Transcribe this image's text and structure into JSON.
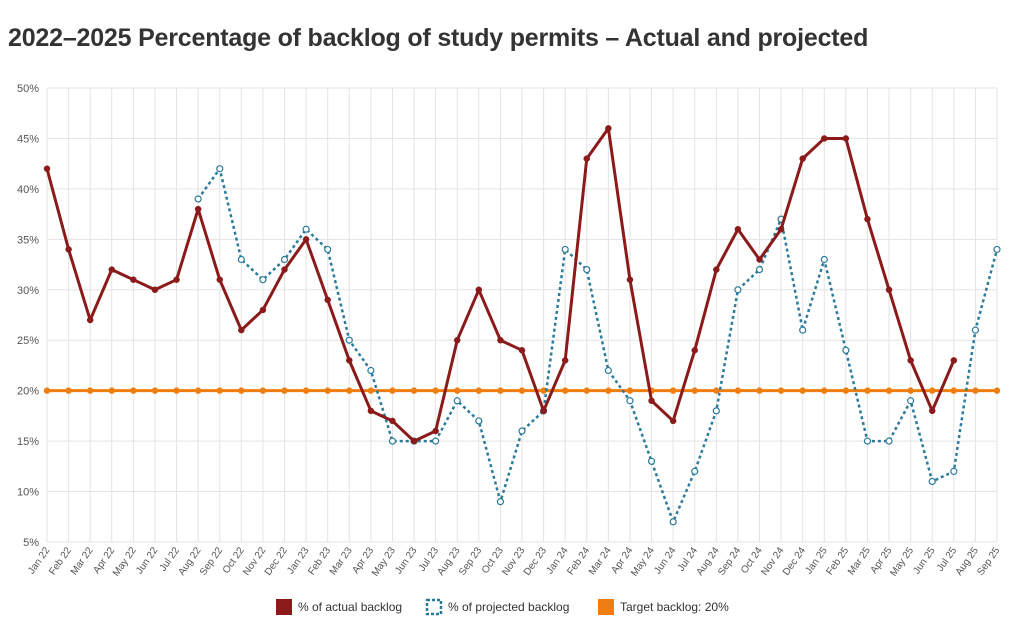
{
  "title": "2022–2025 Percentage of backlog of study permits – Actual and projected",
  "chart_data": {
    "type": "line",
    "title": "2022–2025 Percentage of backlog of study permits – Actual and projected",
    "xlabel": "",
    "ylabel": "",
    "ylim": [
      5,
      50
    ],
    "yticks": [
      5,
      10,
      15,
      20,
      25,
      30,
      35,
      40,
      45,
      50
    ],
    "ytick_labels": [
      "5%",
      "10%",
      "15%",
      "20%",
      "25%",
      "30%",
      "35%",
      "40%",
      "45%",
      "50%"
    ],
    "categories": [
      "Jan 22",
      "Feb 22",
      "Mar 22",
      "Apr 22",
      "May 22",
      "Jun 22",
      "Jul 22",
      "Aug 22",
      "Sep 22",
      "Oct 22",
      "Nov 22",
      "Dec 22",
      "Jan 23",
      "Feb 23",
      "Mar 23",
      "Apr 23",
      "May 23",
      "Jun 23",
      "Jul 23",
      "Aug 23",
      "Sep 23",
      "Oct 23",
      "Nov 23",
      "Dec 23",
      "Jan 24",
      "Feb 24",
      "Mar 24",
      "Apr 24",
      "May 24",
      "Jun 24",
      "Jul 24",
      "Aug 24",
      "Sep 24",
      "Oct 24",
      "Nov 24",
      "Dec 24",
      "Jan 25",
      "Feb 25",
      "Mar 25",
      "Apr 25",
      "May 25",
      "Jun 25",
      "Jul 25",
      "Aug 25",
      "Sep 25"
    ],
    "grid": true,
    "legend_position": "bottom",
    "series": [
      {
        "name": "% of actual backlog",
        "style": "solid",
        "color": "#8b1a1a",
        "values": [
          42,
          34,
          27,
          32,
          31,
          30,
          31,
          38,
          31,
          26,
          28,
          32,
          35,
          29,
          23,
          18,
          17,
          15,
          16,
          25,
          30,
          25,
          24,
          18,
          23,
          43,
          46,
          31,
          19,
          17,
          24,
          32,
          36,
          33,
          36,
          43,
          45,
          45,
          37,
          30,
          23,
          18,
          23,
          null,
          null
        ]
      },
      {
        "name": "% of projected backlog",
        "style": "dotted",
        "color": "#2a7a9a",
        "values": [
          null,
          null,
          null,
          null,
          null,
          null,
          null,
          39,
          42,
          33,
          31,
          33,
          36,
          34,
          25,
          22,
          15,
          15,
          15,
          19,
          17,
          9,
          16,
          18,
          34,
          32,
          22,
          19,
          13,
          7,
          12,
          18,
          30,
          32,
          37,
          26,
          33,
          24,
          15,
          15,
          19,
          11,
          12,
          26,
          34
        ]
      },
      {
        "name": "Target backlog: 20%",
        "style": "solid",
        "color": "#f07d10",
        "values": [
          20,
          20,
          20,
          20,
          20,
          20,
          20,
          20,
          20,
          20,
          20,
          20,
          20,
          20,
          20,
          20,
          20,
          20,
          20,
          20,
          20,
          20,
          20,
          20,
          20,
          20,
          20,
          20,
          20,
          20,
          20,
          20,
          20,
          20,
          20,
          20,
          20,
          20,
          20,
          20,
          20,
          20,
          20,
          20,
          20
        ]
      }
    ]
  }
}
